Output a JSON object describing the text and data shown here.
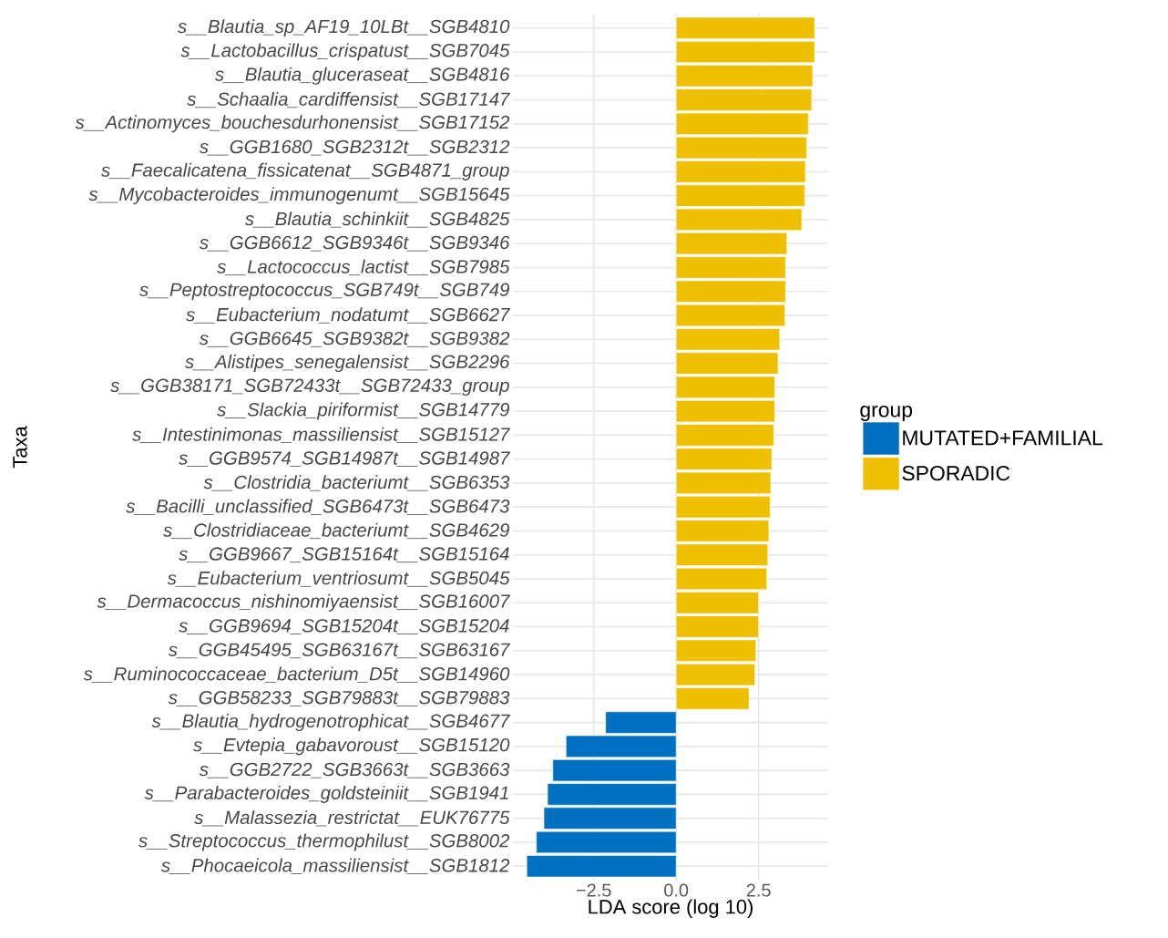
{
  "chart_data": {
    "type": "bar",
    "orientation": "horizontal",
    "xlabel": "LDA score (log 10)",
    "ylabel": "Taxa",
    "legend_title": "group",
    "categories": [
      "s__Blautia_sp_AF19_10LBt__SGB4810",
      "s__Lactobacillus_crispatust__SGB7045",
      "s__Blautia_gluceraseat__SGB4816",
      "s__Schaalia_cardiffensist__SGB17147",
      "s__Actinomyces_bouchesdurhonensist__SGB17152",
      "s__GGB1680_SGB2312t__SGB2312",
      "s__Faecalicatena_fissicatenat__SGB4871_group",
      "s__Mycobacteroides_immunogenumt__SGB15645",
      "s__Blautia_schinkiit__SGB4825",
      "s__GGB6612_SGB9346t__SGB9346",
      "s__Lactococcus_lactist__SGB7985",
      "s__Peptostreptococcus_SGB749t__SGB749",
      "s__Eubacterium_nodatumt__SGB6627",
      "s__GGB6645_SGB9382t__SGB9382",
      "s__Alistipes_senegalensist__SGB2296",
      "s__GGB38171_SGB72433t__SGB72433_group",
      "s__Slackia_piriformist__SGB14779",
      "s__Intestinimonas_massiliensist__SGB15127",
      "s__GGB9574_SGB14987t__SGB14987",
      "s__Clostridia_bacteriumt__SGB6353",
      "s__Bacilli_unclassified_SGB6473t__SGB6473",
      "s__Clostridiaceae_bacteriumt__SGB4629",
      "s__GGB9667_SGB15164t__SGB15164",
      "s__Eubacterium_ventriosumt__SGB5045",
      "s__Dermacoccus_nishinomiyaensist__SGB16007",
      "s__GGB9694_SGB15204t__SGB15204",
      "s__GGB45495_SGB63167t__SGB63167",
      "s__Ruminococcaceae_bacterium_D5t__SGB14960",
      "s__GGB58233_SGB79883t__SGB79883",
      "s__Blautia_hydrogenotrophicat__SGB4677",
      "s__Evtepia_gabavoroust__SGB15120",
      "s__GGB2722_SGB3663t__SGB3663",
      "s__Parabacteroides_goldsteiniit__SGB1941",
      "s__Malassezia_restrictat__EUK76775",
      "s__Streptococcus_thermophilust__SGB8002",
      "s__Phocaeicola_massiliensist__SGB1812"
    ],
    "series": [
      {
        "name": "MUTATED+FAMILIAL",
        "color": "#0070c0",
        "values": [
          null,
          null,
          null,
          null,
          null,
          null,
          null,
          null,
          null,
          null,
          null,
          null,
          null,
          null,
          null,
          null,
          null,
          null,
          null,
          null,
          null,
          null,
          null,
          null,
          null,
          null,
          null,
          null,
          null,
          -2.14,
          -3.34,
          -3.74,
          -3.9,
          -4.01,
          -4.24,
          -4.53
        ]
      },
      {
        "name": "SPORADIC",
        "color": "#eec000",
        "values": [
          4.2,
          4.2,
          4.14,
          4.11,
          4.01,
          3.96,
          3.92,
          3.9,
          3.81,
          3.36,
          3.32,
          3.32,
          3.3,
          3.14,
          3.09,
          2.99,
          2.99,
          2.96,
          2.9,
          2.87,
          2.85,
          2.81,
          2.78,
          2.75,
          2.5,
          2.5,
          2.42,
          2.39,
          2.21,
          null,
          null,
          null,
          null,
          null,
          null,
          null
        ]
      }
    ],
    "xlim": [
      -4.95,
      4.61
    ],
    "xticks": [
      {
        "value": -2.5,
        "label": "−2.5"
      },
      {
        "value": 0,
        "label": "0.0"
      },
      {
        "value": 2.5,
        "label": "2.5"
      }
    ],
    "grid": true,
    "legend": "right"
  }
}
